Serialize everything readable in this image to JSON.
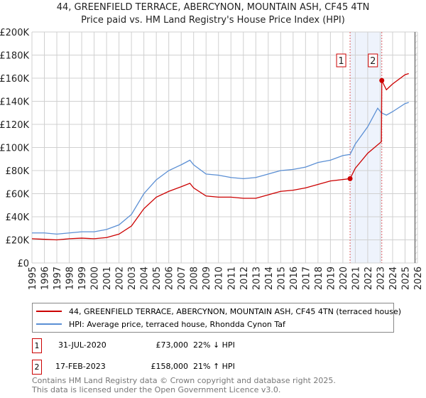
{
  "chart_data": {
    "type": "line",
    "title": "44, GREENFIELD TERRACE, ABERCYNON, MOUNTAIN ASH, CF45 4TN",
    "subtitle": "Price paid vs. HM Land Registry's House Price Index (HPI)",
    "xlim": [
      1995,
      2026
    ],
    "ylim": [
      0,
      200000
    ],
    "x_ticks": [
      "1995",
      "1996",
      "1997",
      "1998",
      "1999",
      "2000",
      "2001",
      "2002",
      "2003",
      "2004",
      "2005",
      "2006",
      "2007",
      "2008",
      "2009",
      "2010",
      "2011",
      "2012",
      "2013",
      "2014",
      "2015",
      "2016",
      "2017",
      "2018",
      "2019",
      "2020",
      "2021",
      "2022",
      "2023",
      "2024",
      "2025",
      "2026"
    ],
    "y_ticks": [
      {
        "v": 0,
        "label": "£0"
      },
      {
        "v": 20000,
        "label": "£20K"
      },
      {
        "v": 40000,
        "label": "£40K"
      },
      {
        "v": 60000,
        "label": "£60K"
      },
      {
        "v": 80000,
        "label": "£80K"
      },
      {
        "v": 100000,
        "label": "£100K"
      },
      {
        "v": 120000,
        "label": "£120K"
      },
      {
        "v": 140000,
        "label": "£140K"
      },
      {
        "v": 160000,
        "label": "£160K"
      },
      {
        "v": 180000,
        "label": "£180K"
      },
      {
        "v": 200000,
        "label": "£200K"
      }
    ],
    "series": [
      {
        "name": "44, GREENFIELD TERRACE, ABERCYNON, MOUNTAIN ASH, CF45 4TN (terraced house)",
        "color": "#cc0000",
        "x": [
          1995,
          1996,
          1997,
          1998,
          1999,
          2000,
          2001,
          2002,
          2003,
          2004,
          2005,
          2006,
          2007,
          2007.7,
          2008,
          2009,
          2010,
          2011,
          2012,
          2013,
          2014,
          2015,
          2016,
          2017,
          2018,
          2019,
          2020.58,
          2021,
          2022,
          2023.1,
          2023.13,
          2023.5,
          2024,
          2025,
          2025.3
        ],
        "y": [
          21000,
          20500,
          20000,
          21000,
          21500,
          21000,
          22000,
          25000,
          32000,
          47000,
          57000,
          62000,
          66000,
          69000,
          65000,
          58000,
          57000,
          57000,
          56000,
          56000,
          59000,
          62000,
          63000,
          65000,
          68000,
          71000,
          73000,
          82000,
          95000,
          105000,
          158000,
          150000,
          155000,
          163000,
          164000
        ]
      },
      {
        "name": "HPI: Average price, terraced house, Rhondda Cynon Taf",
        "color": "#5b8fd4",
        "x": [
          1995,
          1996,
          1997,
          1998,
          1999,
          2000,
          2001,
          2002,
          2003,
          2004,
          2005,
          2006,
          2007,
          2007.7,
          2008,
          2009,
          2010,
          2011,
          2012,
          2013,
          2014,
          2015,
          2016,
          2017,
          2018,
          2019,
          2020,
          2020.58,
          2021,
          2022,
          2022.8,
          2023.1,
          2023.5,
          2024,
          2025,
          2025.3
        ],
        "y": [
          26000,
          26000,
          25000,
          26000,
          27000,
          27000,
          29000,
          33000,
          42000,
          60000,
          72000,
          80000,
          85000,
          89000,
          85000,
          77000,
          76000,
          74000,
          73000,
          74000,
          77000,
          80000,
          81000,
          83000,
          87000,
          89000,
          93000,
          94000,
          103000,
          118000,
          134000,
          130000,
          128000,
          131000,
          138000,
          139000
        ]
      }
    ],
    "sales": [
      {
        "id": "1",
        "x": 2020.58,
        "y": 73000,
        "date": "31-JUL-2020",
        "price": "£73,000",
        "hpi": "22% ↓ HPI"
      },
      {
        "id": "2",
        "x": 2023.13,
        "y": 158000,
        "date": "17-FEB-2023",
        "price": "£158,000",
        "hpi": "21% ↑ HPI"
      }
    ],
    "future_from": 2025.8
  },
  "footer": {
    "line1": "Contains HM Land Registry data © Crown copyright and database right 2025.",
    "line2": "This data is licensed under the Open Government Licence v3.0."
  }
}
